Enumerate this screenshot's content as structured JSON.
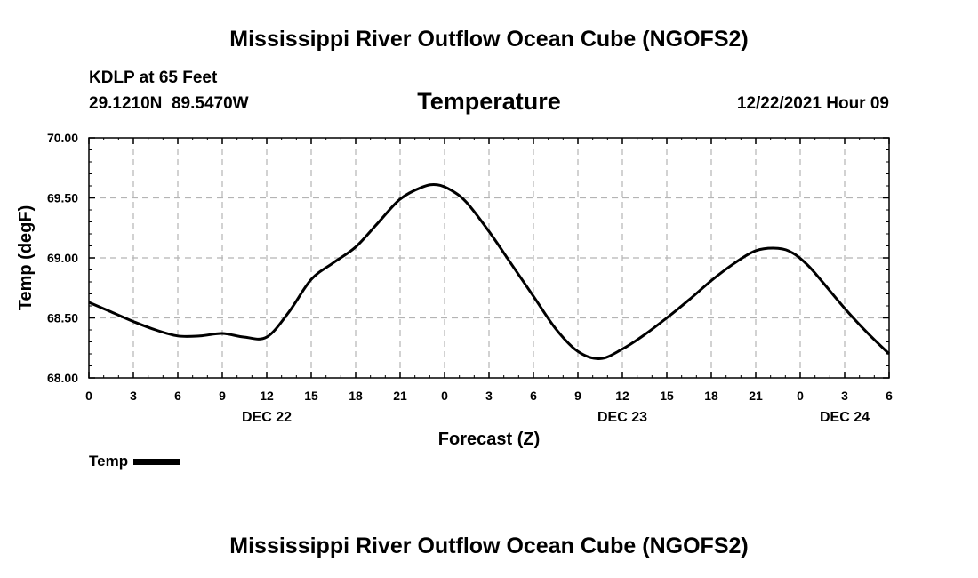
{
  "page": {
    "title": "Mississippi River Outflow Ocean Cube (NGOFS2)",
    "footer_title": "Mississippi River Outflow Ocean Cube (NGOFS2)"
  },
  "station": {
    "name_depth": "KDLP at 65 Feet",
    "coords": "29.1210N  89.5470W",
    "datetime": "12/22/2021 Hour 09"
  },
  "chart_data": {
    "type": "line",
    "title": "Temperature",
    "xlabel": "Forecast (Z)",
    "ylabel": "Temp (degF)",
    "xlim": [
      0,
      54
    ],
    "ylim": [
      68.0,
      70.0
    ],
    "grid": true,
    "x_ticks": [
      0,
      3,
      6,
      9,
      12,
      15,
      18,
      21,
      24,
      27,
      30,
      33,
      36,
      39,
      42,
      45,
      48,
      51,
      54
    ],
    "x_tick_labels": [
      "0",
      "3",
      "6",
      "9",
      "12",
      "15",
      "18",
      "21",
      "0",
      "3",
      "6",
      "9",
      "12",
      "15",
      "18",
      "21",
      "0",
      "3",
      "6"
    ],
    "y_ticks": [
      68.0,
      68.5,
      69.0,
      69.5,
      70.0
    ],
    "y_tick_labels": [
      "68.00",
      "68.50",
      "69.00",
      "69.50",
      "70.00"
    ],
    "date_labels": [
      {
        "x": 12,
        "label": "DEC 22"
      },
      {
        "x": 36,
        "label": "DEC 23"
      },
      {
        "x": 51,
        "label": "DEC 24"
      }
    ],
    "legend": {
      "position": "bottom-left",
      "entries": [
        "Temp"
      ]
    },
    "series": [
      {
        "name": "Temp",
        "color": "#000000",
        "x": [
          0,
          1.5,
          3,
          4.5,
          6,
          7.5,
          9,
          10.5,
          12,
          13.5,
          15,
          16.5,
          18,
          19.5,
          21,
          22.5,
          23.5,
          24.5,
          25.5,
          27,
          28.5,
          30,
          31.5,
          33,
          34.5,
          36,
          37.5,
          39,
          40.5,
          42,
          43.5,
          45,
          46.5,
          47.5,
          48.5,
          49.5,
          51,
          52.5,
          54
        ],
        "values": [
          68.63,
          68.55,
          68.47,
          68.4,
          68.35,
          68.35,
          68.37,
          68.34,
          68.34,
          68.55,
          68.82,
          68.96,
          69.09,
          69.29,
          69.49,
          69.59,
          69.61,
          69.56,
          69.46,
          69.22,
          68.95,
          68.68,
          68.41,
          68.22,
          68.16,
          68.24,
          68.36,
          68.5,
          68.65,
          68.81,
          68.95,
          69.06,
          69.08,
          69.04,
          68.94,
          68.8,
          68.58,
          68.38,
          68.2
        ]
      }
    ]
  }
}
